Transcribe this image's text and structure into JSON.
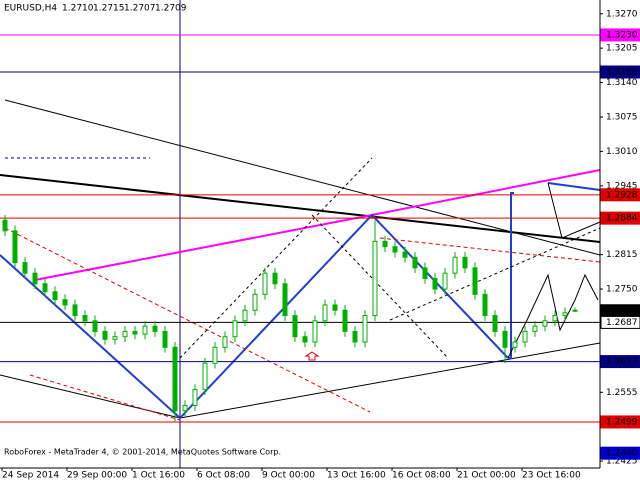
{
  "chart_data": {
    "type": "candlestick",
    "header": {
      "symbol": "EURUSD,H4",
      "ohlc": [
        "1.2710",
        "1.2715",
        "1.2707",
        "1.2709"
      ]
    },
    "footer": "RoboForex - MetaTrader 4, © 2001-2014, MetaQuotes Software Corp.",
    "x_labels": [
      "24 Sep 2014",
      "29 Sep 00:00",
      "1 Oct 16:00",
      "6 Oct 08:00",
      "9 Oct 00:00",
      "13 Oct 16:00",
      "16 Oct 08:00",
      "21 Oct 00:00",
      "23 Oct 16:00"
    ],
    "open": [
      1.288,
      1.286,
      1.28,
      1.278,
      1.276,
      1.2745,
      1.273,
      1.272,
      1.27,
      1.269,
      1.267,
      1.2655,
      1.266,
      1.267,
      1.2665,
      1.268,
      1.267,
      1.264,
      1.252,
      1.253,
      1.256,
      1.261,
      1.264,
      1.266,
      1.269,
      1.271,
      1.274,
      1.278,
      1.276,
      1.27,
      1.266,
      1.265,
      1.269,
      1.272,
      1.271,
      1.267,
      1.265,
      1.27,
      1.284,
      1.283,
      1.282,
      1.281,
      1.279,
      1.277,
      1.275,
      1.278,
      1.281,
      1.279,
      1.274,
      1.27,
      1.267,
      1.264,
      1.265,
      1.267,
      1.268,
      1.269,
      1.27,
      1.271
    ],
    "high": [
      1.289,
      1.287,
      1.281,
      1.279,
      1.277,
      1.2755,
      1.274,
      1.273,
      1.271,
      1.27,
      1.268,
      1.267,
      1.268,
      1.268,
      1.269,
      1.269,
      1.268,
      1.265,
      1.254,
      1.257,
      1.262,
      1.265,
      1.267,
      1.27,
      1.272,
      1.275,
      1.279,
      1.279,
      1.277,
      1.271,
      1.267,
      1.27,
      1.273,
      1.273,
      1.272,
      1.268,
      1.271,
      1.288,
      1.285,
      1.284,
      1.283,
      1.282,
      1.28,
      1.278,
      1.279,
      1.282,
      1.282,
      1.28,
      1.275,
      1.271,
      1.268,
      1.266,
      1.268,
      1.269,
      1.27,
      1.271,
      1.2715,
      1.2715
    ],
    "low": [
      1.285,
      1.279,
      1.277,
      1.275,
      1.2735,
      1.272,
      1.271,
      1.269,
      1.268,
      1.266,
      1.2645,
      1.2645,
      1.265,
      1.2655,
      1.2655,
      1.266,
      1.263,
      1.25,
      1.251,
      1.252,
      1.255,
      1.26,
      1.263,
      1.265,
      1.268,
      1.27,
      1.273,
      1.275,
      1.269,
      1.265,
      1.264,
      1.264,
      1.268,
      1.27,
      1.266,
      1.264,
      1.264,
      1.269,
      1.282,
      1.281,
      1.28,
      1.278,
      1.276,
      1.274,
      1.274,
      1.277,
      1.278,
      1.273,
      1.269,
      1.266,
      1.261,
      1.263,
      1.264,
      1.266,
      1.267,
      1.268,
      1.269,
      1.2707
    ],
    "close": [
      1.286,
      1.28,
      1.278,
      1.276,
      1.2745,
      1.273,
      1.272,
      1.27,
      1.269,
      1.267,
      1.2655,
      1.266,
      1.267,
      1.2665,
      1.268,
      1.267,
      1.264,
      1.252,
      1.253,
      1.256,
      1.261,
      1.264,
      1.266,
      1.269,
      1.271,
      1.274,
      1.278,
      1.276,
      1.27,
      1.266,
      1.265,
      1.269,
      1.272,
      1.271,
      1.267,
      1.265,
      1.27,
      1.284,
      1.283,
      1.282,
      1.281,
      1.279,
      1.277,
      1.275,
      1.278,
      1.281,
      1.279,
      1.274,
      1.27,
      1.267,
      1.264,
      1.265,
      1.267,
      1.268,
      1.269,
      1.27,
      1.2705,
      1.2709
    ],
    "color": "#00b000",
    "ylim": [
      1.2412,
      1.3296
    ],
    "yticks": [
      {
        "value": 1.327,
        "label": "1.3270"
      },
      {
        "value": 1.3205,
        "label": "1.3205"
      },
      {
        "value": 1.314,
        "label": "1.3140"
      },
      {
        "value": 1.3075,
        "label": "1.3075"
      },
      {
        "value": 1.301,
        "label": "1.3010"
      },
      {
        "value": 1.2945,
        "label": "1.2945"
      },
      {
        "value": 1.2815,
        "label": "1.2815"
      },
      {
        "value": 1.275,
        "label": "1.2750"
      },
      {
        "value": 1.2555,
        "label": "1.2555"
      },
      {
        "value": 1.2425,
        "label": "1.2425"
      }
    ],
    "levels": [
      {
        "value": 1.323,
        "label": "1.3230",
        "color": "#ff00ff",
        "text_color": "#ffffff",
        "line": true
      },
      {
        "value": 1.316,
        "label": "1.3160",
        "color": "#000080",
        "text_color": "#ffffff",
        "line": true
      },
      {
        "value": 1.2928,
        "label": "1.2928",
        "color": "#e00000",
        "text_color": "#ffffff",
        "line": true
      },
      {
        "value": 1.2884,
        "label": "1.2884",
        "color": "#e00000",
        "text_color": "#ffffff",
        "line": true
      },
      {
        "value": 1.2709,
        "label": "1.2709",
        "color": "#000000",
        "text_color": "#ffffff",
        "line": false
      },
      {
        "value": 1.2687,
        "label": "1.2687",
        "color": "#ffffff",
        "text_color": "#000000",
        "line": true
      },
      {
        "value": 1.2613,
        "label": "1.2613",
        "color": "#000080",
        "text_color": "#ffffff",
        "line": true
      },
      {
        "value": 1.2499,
        "label": "1.2499",
        "color": "#e00000",
        "text_color": "#ffffff",
        "line": true
      },
      {
        "value": 1.244,
        "label": "1.2440",
        "color": "#0000cc",
        "text_color": "#ffffff",
        "line": false
      }
    ]
  }
}
